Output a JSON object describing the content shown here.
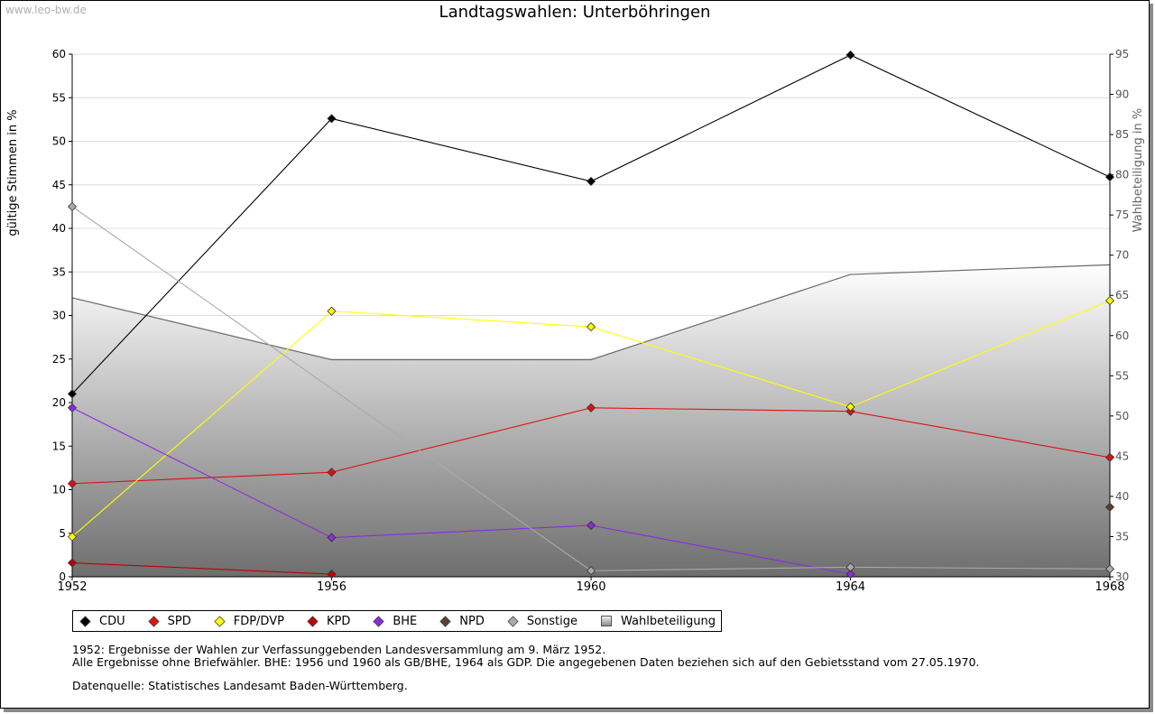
{
  "watermark": "www.leo-bw.de",
  "chart_data": {
    "type": "line",
    "title": "Landtagswahlen: Unterböhringen",
    "ylabel_left": "gültige Stimmen in %",
    "ylabel_right": "Wahlbeteiligung in %",
    "x": [
      1952,
      1956,
      1960,
      1964,
      1968
    ],
    "ylim_left": [
      0,
      60
    ],
    "yticks_left": [
      0,
      5,
      10,
      15,
      20,
      25,
      30,
      35,
      40,
      45,
      50,
      55,
      60
    ],
    "ylim_right": [
      30,
      95
    ],
    "yticks_right": [
      30,
      35,
      40,
      45,
      50,
      55,
      60,
      65,
      70,
      75,
      80,
      85,
      90,
      95
    ],
    "grid": true,
    "series": [
      {
        "name": "CDU",
        "color": "#000000",
        "values": [
          21.0,
          52.6,
          45.4,
          59.9,
          45.9
        ]
      },
      {
        "name": "SPD",
        "color": "#e01010",
        "values": [
          10.7,
          12.0,
          19.4,
          19.0,
          13.7
        ]
      },
      {
        "name": "FDP/DVP",
        "color": "#ffff00",
        "values": [
          4.6,
          30.5,
          28.7,
          19.5,
          31.7
        ]
      },
      {
        "name": "KPD",
        "color": "#c00000",
        "values": [
          1.6,
          0.3,
          null,
          null,
          null
        ]
      },
      {
        "name": "BHE",
        "color": "#8a2be2",
        "values": [
          19.4,
          4.5,
          5.9,
          0.3,
          null
        ]
      },
      {
        "name": "NPD",
        "color": "#5c4033",
        "values": [
          null,
          null,
          null,
          null,
          8.0
        ]
      },
      {
        "name": "Sonstige",
        "color": "#aaaaaa",
        "values": [
          42.5,
          null,
          0.7,
          1.1,
          0.9
        ]
      }
    ],
    "turnout": {
      "name": "Wahlbeteiligung",
      "axis": "right",
      "values": [
        64.7,
        57.0,
        57.0,
        67.6,
        68.8
      ]
    }
  },
  "legend": [
    {
      "label": "CDU",
      "color": "#000000",
      "shape": "diamond"
    },
    {
      "label": "SPD",
      "color": "#e01010",
      "shape": "diamond"
    },
    {
      "label": "FDP/DVP",
      "color": "#ffff00",
      "shape": "diamond"
    },
    {
      "label": "KPD",
      "color": "#c00000",
      "shape": "diamond"
    },
    {
      "label": "BHE",
      "color": "#8a2be2",
      "shape": "diamond"
    },
    {
      "label": "NPD",
      "color": "#5c4033",
      "shape": "diamond"
    },
    {
      "label": "Sonstige",
      "color": "#aaaaaa",
      "shape": "diamond"
    },
    {
      "label": "Wahlbeteiligung",
      "color": "#aaaaaa",
      "shape": "box"
    }
  ],
  "notes": {
    "line1": "1952: Ergebnisse der Wahlen zur Verfassunggebenden Landesversammlung am 9. März 1952.",
    "line2": "Alle Ergebnisse ohne Briefwähler. BHE: 1956 und 1960 als GB/BHE, 1964 als GDP. Die angegebenen Daten beziehen sich auf den Gebietsstand vom 27.05.1970.",
    "source": "Datenquelle: Statistisches Landesamt Baden-Württemberg."
  }
}
